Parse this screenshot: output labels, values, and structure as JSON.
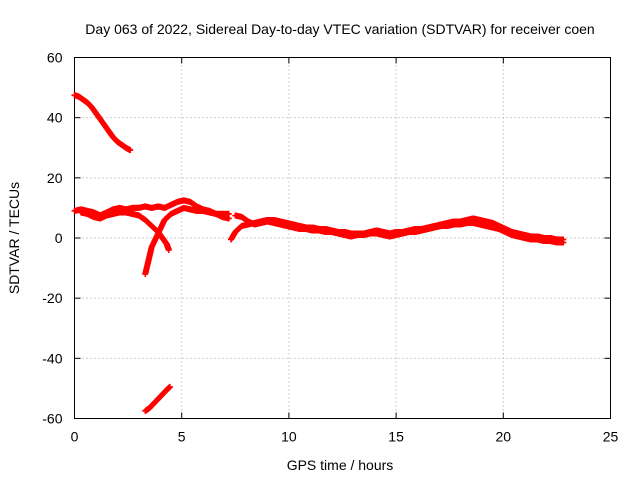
{
  "chart_data": {
    "type": "scatter",
    "title": "Day 063 of 2022, Sidereal Day-to-day VTEC variation (SDTVAR) for receiver coen",
    "xlabel": "GPS time / hours",
    "ylabel": "SDTVAR / TECUs",
    "xlim": [
      0,
      25
    ],
    "ylim": [
      -60,
      60
    ],
    "xticks": [
      0,
      5,
      10,
      15,
      20,
      25
    ],
    "yticks": [
      -60,
      -40,
      -20,
      0,
      20,
      40,
      60
    ],
    "xtick_labels": [
      "0",
      "5",
      "10",
      "15",
      "20",
      "25"
    ],
    "ytick_labels": [
      "-60",
      "-40",
      "-20",
      "0",
      "20",
      "40",
      "60"
    ],
    "grid": true,
    "marker": "+",
    "color": "#ff0000",
    "series": [
      {
        "name": "arc-high",
        "points": [
          [
            0.0,
            47.5
          ],
          [
            0.2,
            47.0
          ],
          [
            0.4,
            46.0
          ],
          [
            0.6,
            45.0
          ],
          [
            0.8,
            43.5
          ],
          [
            1.0,
            41.5
          ],
          [
            1.2,
            39.5
          ],
          [
            1.4,
            37.5
          ],
          [
            1.6,
            35.5
          ],
          [
            1.8,
            33.5
          ],
          [
            2.0,
            32.0
          ],
          [
            2.2,
            31.0
          ],
          [
            2.4,
            30.0
          ],
          [
            2.6,
            29.2
          ]
        ]
      },
      {
        "name": "arc-main",
        "points": [
          [
            0.0,
            9.0
          ],
          [
            0.3,
            9.5
          ],
          [
            0.6,
            9.0
          ],
          [
            0.9,
            8.5
          ],
          [
            1.2,
            7.5
          ],
          [
            1.5,
            8.5
          ],
          [
            1.8,
            9.5
          ],
          [
            2.1,
            10.0
          ],
          [
            2.4,
            9.5
          ],
          [
            2.7,
            10.0
          ],
          [
            3.0,
            10.0
          ],
          [
            3.3,
            10.5
          ],
          [
            3.6,
            10.0
          ],
          [
            3.9,
            10.5
          ],
          [
            4.2,
            10.0
          ],
          [
            4.5,
            11.0
          ],
          [
            4.8,
            12.0
          ],
          [
            5.1,
            12.5
          ],
          [
            5.4,
            12.0
          ],
          [
            5.7,
            10.5
          ],
          [
            6.0,
            9.5
          ],
          [
            6.3,
            9.0
          ],
          [
            6.6,
            8.0
          ],
          [
            6.9,
            7.0
          ],
          [
            7.2,
            6.5
          ]
        ]
      },
      {
        "name": "arc-rising",
        "points": [
          [
            0.3,
            8.5
          ],
          [
            0.6,
            8.0
          ],
          [
            0.9,
            7.0
          ],
          [
            1.2,
            6.5
          ],
          [
            1.5,
            7.5
          ],
          [
            1.8,
            8.0
          ],
          [
            2.1,
            8.5
          ],
          [
            2.4,
            8.5
          ],
          [
            2.7,
            8.0
          ],
          [
            3.0,
            7.5
          ],
          [
            3.3,
            6.0
          ],
          [
            3.6,
            4.0
          ],
          [
            3.9,
            2.0
          ],
          [
            4.1,
            0.0
          ],
          [
            4.3,
            -2.0
          ],
          [
            4.4,
            -4.0
          ]
        ]
      },
      {
        "name": "arc-dip",
        "points": [
          [
            3.3,
            -12.0
          ],
          [
            3.4,
            -9.0
          ],
          [
            3.5,
            -6.0
          ],
          [
            3.6,
            -3.0
          ],
          [
            3.8,
            0.0
          ],
          [
            4.0,
            3.0
          ],
          [
            4.2,
            6.0
          ],
          [
            4.5,
            8.0
          ],
          [
            4.8,
            9.0
          ],
          [
            5.1,
            10.0
          ],
          [
            5.4,
            9.5
          ],
          [
            5.7,
            9.0
          ],
          [
            6.0,
            9.0
          ],
          [
            6.3,
            8.5
          ],
          [
            6.6,
            8.0
          ],
          [
            6.9,
            8.0
          ],
          [
            7.2,
            8.0
          ]
        ]
      },
      {
        "name": "arc-low",
        "points": [
          [
            3.3,
            -57.5
          ],
          [
            3.5,
            -56.5
          ],
          [
            3.7,
            -55.0
          ],
          [
            3.9,
            -53.5
          ],
          [
            4.1,
            -52.0
          ],
          [
            4.3,
            -50.5
          ],
          [
            4.45,
            -49.5
          ]
        ]
      },
      {
        "name": "arc-late",
        "points": [
          [
            7.3,
            -0.5
          ],
          [
            7.5,
            2.0
          ],
          [
            7.8,
            4.0
          ],
          [
            8.1,
            4.5
          ],
          [
            8.4,
            5.0
          ],
          [
            8.7,
            5.5
          ],
          [
            9.0,
            6.0
          ],
          [
            9.3,
            6.0
          ],
          [
            9.6,
            5.5
          ],
          [
            9.9,
            5.0
          ],
          [
            10.2,
            4.5
          ],
          [
            10.5,
            4.0
          ],
          [
            10.8,
            3.5
          ],
          [
            11.1,
            3.5
          ],
          [
            11.4,
            3.0
          ],
          [
            11.7,
            3.0
          ],
          [
            12.0,
            2.5
          ],
          [
            12.3,
            2.0
          ],
          [
            12.6,
            2.0
          ],
          [
            12.9,
            1.5
          ],
          [
            13.2,
            1.5
          ],
          [
            13.5,
            1.5
          ],
          [
            13.8,
            2.0
          ],
          [
            14.1,
            2.5
          ],
          [
            14.4,
            2.0
          ],
          [
            14.7,
            1.5
          ],
          [
            15.0,
            2.0
          ],
          [
            15.3,
            2.0
          ],
          [
            15.6,
            2.5
          ],
          [
            15.9,
            3.0
          ],
          [
            16.2,
            3.0
          ],
          [
            16.5,
            3.5
          ],
          [
            16.8,
            4.0
          ],
          [
            17.1,
            4.5
          ],
          [
            17.4,
            5.0
          ],
          [
            17.7,
            5.5
          ],
          [
            18.0,
            5.5
          ],
          [
            18.3,
            6.0
          ],
          [
            18.6,
            6.5
          ],
          [
            18.9,
            6.0
          ],
          [
            19.2,
            5.5
          ],
          [
            19.5,
            5.0
          ],
          [
            19.8,
            4.0
          ],
          [
            20.1,
            3.0
          ],
          [
            20.4,
            2.0
          ],
          [
            20.7,
            1.5
          ],
          [
            21.0,
            1.0
          ],
          [
            21.3,
            0.5
          ],
          [
            21.6,
            0.5
          ],
          [
            21.9,
            0.0
          ],
          [
            22.2,
            0.0
          ],
          [
            22.5,
            -0.5
          ],
          [
            22.8,
            -0.5
          ]
        ]
      },
      {
        "name": "arc-late-2",
        "points": [
          [
            7.5,
            7.5
          ],
          [
            7.8,
            7.0
          ],
          [
            8.1,
            5.5
          ],
          [
            8.4,
            4.5
          ],
          [
            8.7,
            5.0
          ],
          [
            9.0,
            5.5
          ],
          [
            9.3,
            5.0
          ],
          [
            9.6,
            4.5
          ],
          [
            9.9,
            4.0
          ],
          [
            10.2,
            3.5
          ],
          [
            10.5,
            3.0
          ],
          [
            10.8,
            3.0
          ],
          [
            11.1,
            2.5
          ],
          [
            11.4,
            2.5
          ],
          [
            11.7,
            2.0
          ],
          [
            12.0,
            2.0
          ],
          [
            12.3,
            1.5
          ],
          [
            12.6,
            1.0
          ],
          [
            12.9,
            0.5
          ],
          [
            13.2,
            1.0
          ],
          [
            13.5,
            1.0
          ],
          [
            13.8,
            1.5
          ],
          [
            14.1,
            1.5
          ],
          [
            14.4,
            1.0
          ],
          [
            14.7,
            0.5
          ],
          [
            15.0,
            1.0
          ],
          [
            15.3,
            1.5
          ],
          [
            15.6,
            2.0
          ],
          [
            15.9,
            2.0
          ],
          [
            16.2,
            2.5
          ],
          [
            16.5,
            3.0
          ],
          [
            16.8,
            3.5
          ],
          [
            17.1,
            4.0
          ],
          [
            17.4,
            4.0
          ],
          [
            17.7,
            4.5
          ],
          [
            18.0,
            4.5
          ],
          [
            18.3,
            5.0
          ],
          [
            18.6,
            5.0
          ],
          [
            18.9,
            4.5
          ],
          [
            19.2,
            4.0
          ],
          [
            19.5,
            3.5
          ],
          [
            19.8,
            3.0
          ],
          [
            20.1,
            2.0
          ],
          [
            20.4,
            1.0
          ],
          [
            20.7,
            0.5
          ],
          [
            21.0,
            0.0
          ],
          [
            21.3,
            -0.5
          ],
          [
            21.6,
            -0.5
          ],
          [
            21.9,
            -1.0
          ],
          [
            22.2,
            -1.0
          ],
          [
            22.5,
            -1.5
          ],
          [
            22.8,
            -1.5
          ]
        ]
      }
    ]
  }
}
